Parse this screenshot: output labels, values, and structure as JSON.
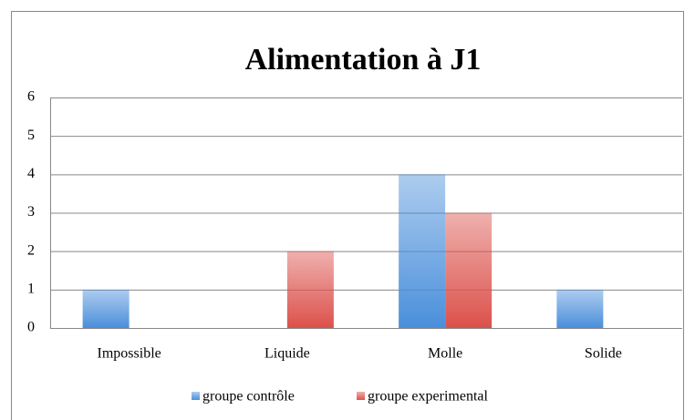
{
  "chart_data": {
    "type": "bar",
    "title": "Alimentation à J1",
    "categories": [
      "Impossible",
      "Liquide",
      "Molle",
      "Solide"
    ],
    "series": [
      {
        "name": "groupe contrôle",
        "color": "#4a8fdb",
        "values": [
          1,
          0,
          4,
          1
        ]
      },
      {
        "name": "groupe experimental",
        "color": "#dc514b",
        "values": [
          0,
          2,
          3,
          0
        ]
      }
    ],
    "ylim": [
      0,
      6
    ],
    "yticks": [
      0,
      1,
      2,
      3,
      4,
      5,
      6
    ],
    "grid": true,
    "legend": "bottom"
  }
}
